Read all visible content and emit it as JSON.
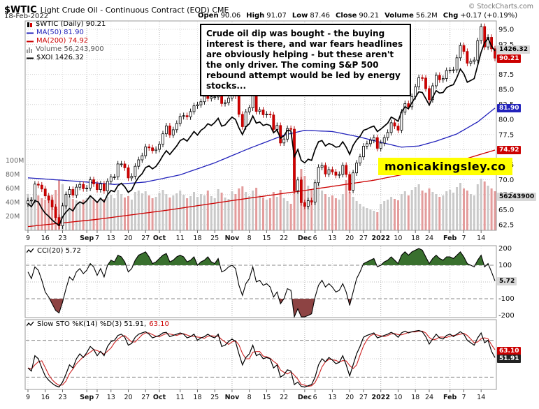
{
  "header": {
    "symbol": "$WTIC",
    "title": "Light Crude Oil - Continuous Contract (EOD) CME",
    "copyright": "© StockCharts.com",
    "date": "18-Feb-2022",
    "open_label": "Open",
    "open_value": "90.06",
    "high_label": "High",
    "high_value": "91.07",
    "low_label": "Low",
    "low_value": "87.46",
    "close_label": "Close",
    "close_value": "90.21",
    "volume_label": "Volume",
    "volume_value": "56.2M",
    "chg_label": "Chg",
    "chg_value": "+0.17 (+0.19%)"
  },
  "legend": {
    "main": "$WTIC (Daily) 90.21",
    "ma50": "MA(50) 81.90",
    "ma200": "MA(200) 74.92",
    "volume": "Volume 56,243,900",
    "overlay": "$XOI 1426.32"
  },
  "annotation": {
    "text": "Crude oil dip was bought - the buying interest is there, and war fears headlines are obviously helping - but these aren't the only driver. The coming S&P 500 rebound attempt would be led by energy stocks..."
  },
  "brand": {
    "text": "monicakingsley.co"
  },
  "panels": {
    "cci_label": "CCI(20) 5.72",
    "sto_label": "Slow STO %K(14) %D(3) 51.91, ",
    "sto_label_red": "63.10"
  },
  "axis_boxes": {
    "xoi": "1426.32",
    "close": "90.21",
    "ma50": "81.90",
    "ma200": "74.92",
    "volume": "56243900",
    "cci": "5.72",
    "sto_d": "63.10",
    "sto_k": "51.91"
  },
  "colors": {
    "candle_down": "#d40000",
    "ma50": "#2222bb",
    "ma200": "#cc0000",
    "overlay_line": "#000000",
    "cci_overbought_fill": "#39702e",
    "cci_oversold_fill": "#8d4343",
    "brand_bg": "#ffff00"
  },
  "chart_data": [
    {
      "type": "candlestick",
      "title": "$WTIC Light Crude Oil - Continuous Contract (EOD) Daily",
      "date_range": "09-Aug-2021 to 18-Feb-2022",
      "ylim": [
        62.5,
        95.0
      ],
      "y_grid_step": 2.5,
      "first_open": 66.0,
      "approx_wick": 0.5,
      "open_rule": "previous_close",
      "closes": [
        66.48,
        66.59,
        69.25,
        69.09,
        68.44,
        67.29,
        66.59,
        65.46,
        63.69,
        62.32,
        65.64,
        67.54,
        68.36,
        67.42,
        68.74,
        69.21,
        68.5,
        68.59,
        69.99,
        69.29,
        68.35,
        69.3,
        68.14,
        69.72,
        70.45,
        70.46,
        72.61,
        72.61,
        71.97,
        70.29,
        70.56,
        72.23,
        73.3,
        73.98,
        75.45,
        75.29,
        74.83,
        75.03,
        75.88,
        77.62,
        78.93,
        77.43,
        78.3,
        79.35,
        80.52,
        80.64,
        80.44,
        81.31,
        82.28,
        82.44,
        82.96,
        83.87,
        83.5,
        83.76,
        83.76,
        84.65,
        82.66,
        82.81,
        83.57,
        84.05,
        83.91,
        80.86,
        78.81,
        81.27,
        81.93,
        84.15,
        81.34,
        81.59,
        80.79,
        80.88,
        80.76,
        78.36,
        79.01,
        76.1,
        76.75,
        78.5,
        78.39,
        68.15,
        69.95,
        66.18,
        65.57,
        66.5,
        66.26,
        69.49,
        72.05,
        72.36,
        70.94,
        71.67,
        71.29,
        70.73,
        70.87,
        72.38,
        70.86,
        68.23,
        71.12,
        72.76,
        73.79,
        75.57,
        75.98,
        76.56,
        76.99,
        75.21,
        76.08,
        76.99,
        77.85,
        79.46,
        78.9,
        78.23,
        81.22,
        82.64,
        82.12,
        83.82,
        85.43,
        86.96,
        86.9,
        85.14,
        83.31,
        85.6,
        87.35,
        86.61,
        86.82,
        88.15,
        88.2,
        88.26,
        90.27,
        92.31,
        91.32,
        89.36,
        89.66,
        89.88,
        93.1,
        95.46,
        92.07,
        93.66,
        91.76,
        90.21
      ],
      "volumes_millions": [
        52,
        48,
        55,
        50,
        46,
        44,
        47,
        51,
        58,
        72,
        66,
        54,
        49,
        45,
        43,
        41,
        44,
        46,
        50,
        44,
        42,
        47,
        45,
        48,
        51,
        46,
        58,
        52,
        47,
        49,
        44,
        55,
        57,
        53,
        56,
        50,
        46,
        48,
        54,
        58,
        52,
        47,
        50,
        53,
        57,
        51,
        46,
        49,
        55,
        48,
        52,
        50,
        57,
        49,
        46,
        59,
        54,
        47,
        45,
        56,
        52,
        60,
        63,
        55,
        49,
        57,
        61,
        50,
        47,
        44,
        46,
        55,
        48,
        58,
        46,
        42,
        38,
        96,
        72,
        88,
        78,
        64,
        58,
        62,
        66,
        57,
        52,
        48,
        50,
        46,
        44,
        52,
        72,
        55,
        48,
        42,
        38,
        34,
        32,
        30,
        28,
        26,
        38,
        42,
        44,
        48,
        45,
        43,
        52,
        56,
        50,
        58,
        62,
        66,
        57,
        54,
        60,
        55,
        52,
        48,
        50,
        56,
        58,
        54,
        62,
        68,
        60,
        57,
        52,
        50,
        66,
        74,
        70,
        64,
        60,
        56
      ],
      "volume_axis_labels": [
        {
          "v": 100,
          "t": "100M"
        },
        {
          "v": 80,
          "t": "80M"
        },
        {
          "v": 60,
          "t": "60M"
        },
        {
          "v": 40,
          "t": "40M"
        },
        {
          "v": 20,
          "t": "20M"
        }
      ],
      "price_axis_labels": [
        {
          "v": 95.0,
          "t": "95.0"
        },
        {
          "v": 92.5,
          "t": "92.5"
        },
        {
          "v": 87.5,
          "t": "87.5"
        },
        {
          "v": 85.0,
          "t": "85.0"
        },
        {
          "v": 82.5,
          "t": "82.5"
        },
        {
          "v": 80.0,
          "t": "80.0"
        },
        {
          "v": 77.5,
          "t": "77.5"
        },
        {
          "v": 72.5,
          "t": "72.5"
        },
        {
          "v": 70.0,
          "t": "70.0"
        },
        {
          "v": 67.5,
          "t": "67.5"
        },
        {
          "v": 65.0,
          "t": "65.0"
        },
        {
          "v": 62.5,
          "t": "62.5"
        }
      ],
      "series": [
        {
          "name": "MA(50)",
          "last": 81.9,
          "color": "#2222bb",
          "keypoints": [
            [
              0,
              70.3
            ],
            [
              10,
              69.9
            ],
            [
              17,
              69.6
            ],
            [
              25,
              69.2
            ],
            [
              34,
              69.6
            ],
            [
              44,
              70.8
            ],
            [
              54,
              72.8
            ],
            [
              64,
              75.2
            ],
            [
              74,
              77.4
            ],
            [
              80,
              78.2
            ],
            [
              88,
              78.0
            ],
            [
              95,
              77.2
            ],
            [
              102,
              76.2
            ],
            [
              108,
              75.4
            ],
            [
              113,
              75.6
            ],
            [
              118,
              76.4
            ],
            [
              124,
              77.6
            ],
            [
              130,
              79.6
            ],
            [
              135,
              81.9
            ]
          ]
        },
        {
          "name": "MA(200)",
          "last": 74.92,
          "color": "#cc0000",
          "keypoints": [
            [
              0,
              62.2
            ],
            [
              20,
              63.4
            ],
            [
              40,
              64.9
            ],
            [
              60,
              66.6
            ],
            [
              80,
              68.2
            ],
            [
              100,
              69.9
            ],
            [
              115,
              71.6
            ],
            [
              125,
              73.2
            ],
            [
              135,
              74.92
            ]
          ]
        },
        {
          "name": "$XOI (rescaled to price axis)",
          "last": 1426.32,
          "color": "#000000",
          "values": [
            66.0,
            65.5,
            66.5,
            66.3,
            65.2,
            64.4,
            63.9,
            63.3,
            62.8,
            62.4,
            63.8,
            64.6,
            65.2,
            64.8,
            65.8,
            66.3,
            66.0,
            66.5,
            67.3,
            66.8,
            66.2,
            66.9,
            66.3,
            67.5,
            68.2,
            68.0,
            69.0,
            69.4,
            68.8,
            67.9,
            68.3,
            69.5,
            70.4,
            71.0,
            72.0,
            72.3,
            71.8,
            72.2,
            73.0,
            74.0,
            74.8,
            74.2,
            74.9,
            75.6,
            76.5,
            76.8,
            76.4,
            77.2,
            78.0,
            77.4,
            78.2,
            78.6,
            79.3,
            79.0,
            79.5,
            80.2,
            78.9,
            79.1,
            79.8,
            80.4,
            80.0,
            78.6,
            77.5,
            78.8,
            79.3,
            80.6,
            79.4,
            79.6,
            79.0,
            79.2,
            79.0,
            77.8,
            78.3,
            76.9,
            77.3,
            78.2,
            78.1,
            73.8,
            75.0,
            73.2,
            72.8,
            73.4,
            73.2,
            75.0,
            76.3,
            76.5,
            75.6,
            76.0,
            75.8,
            75.4,
            75.5,
            76.3,
            75.4,
            74.2,
            75.7,
            76.6,
            77.2,
            78.2,
            78.4,
            78.7,
            78.9,
            78.0,
            78.4,
            78.9,
            79.4,
            80.4,
            80.1,
            79.7,
            81.3,
            82.1,
            81.8,
            82.8,
            83.7,
            84.6,
            84.5,
            83.5,
            82.4,
            83.7,
            84.8,
            84.4,
            84.5,
            85.3,
            85.6,
            85.8,
            87.0,
            88.4,
            87.6,
            86.2,
            86.5,
            86.8,
            89.0,
            91.2,
            92.8,
            93.5,
            92.2,
            91.4
          ]
        }
      ],
      "x_ticks": [
        {
          "label": "9",
          "i": 0
        },
        {
          "label": "16",
          "i": 5
        },
        {
          "label": "23",
          "i": 10
        },
        {
          "label": "Sep",
          "i": 17,
          "month": true
        },
        {
          "label": "7",
          "i": 20
        },
        {
          "label": "13",
          "i": 24
        },
        {
          "label": "20",
          "i": 29
        },
        {
          "label": "27",
          "i": 34
        },
        {
          "label": "Oct",
          "i": 38,
          "month": true
        },
        {
          "label": "11",
          "i": 44
        },
        {
          "label": "18",
          "i": 49
        },
        {
          "label": "25",
          "i": 54
        },
        {
          "label": "Nov",
          "i": 59,
          "month": true
        },
        {
          "label": "8",
          "i": 64
        },
        {
          "label": "15",
          "i": 69
        },
        {
          "label": "22",
          "i": 74
        },
        {
          "label": "Dec",
          "i": 80,
          "month": true
        },
        {
          "label": "6",
          "i": 83
        },
        {
          "label": "13",
          "i": 88
        },
        {
          "label": "20",
          "i": 93
        },
        {
          "label": "27",
          "i": 97
        },
        {
          "label": "2022",
          "i": 102,
          "month": true
        },
        {
          "label": "10",
          "i": 107
        },
        {
          "label": "18",
          "i": 112
        },
        {
          "label": "24",
          "i": 116
        },
        {
          "label": "Feb",
          "i": 122,
          "month": true
        },
        {
          "label": "7",
          "i": 126
        },
        {
          "label": "14",
          "i": 131
        }
      ]
    },
    {
      "type": "line",
      "name": "CCI(20)",
      "last": 5.72,
      "ylim": [
        -200,
        200
      ],
      "thresholds": [
        100,
        -100
      ],
      "axis_labels": [
        {
          "v": 200,
          "t": "200"
        },
        {
          "v": 100,
          "t": "100"
        },
        {
          "v": 0,
          "t": "0"
        },
        {
          "v": -100,
          "t": "-100"
        },
        {
          "v": -200,
          "t": "-200"
        }
      ],
      "values": [
        60,
        20,
        90,
        70,
        10,
        -60,
        -90,
        -130,
        -170,
        -185,
        -120,
        -40,
        30,
        10,
        60,
        80,
        50,
        70,
        110,
        90,
        40,
        80,
        30,
        100,
        130,
        120,
        160,
        150,
        120,
        60,
        80,
        130,
        160,
        170,
        180,
        150,
        110,
        120,
        140,
        160,
        170,
        120,
        130,
        150,
        160,
        150,
        120,
        130,
        150,
        100,
        120,
        130,
        150,
        120,
        110,
        140,
        60,
        70,
        90,
        100,
        80,
        -20,
        -80,
        -10,
        20,
        90,
        0,
        10,
        -20,
        -10,
        -30,
        -90,
        -60,
        -130,
        -100,
        -40,
        -50,
        -230,
        -160,
        -240,
        -250,
        -200,
        -190,
        -90,
        -20,
        10,
        -30,
        -10,
        -30,
        -60,
        -50,
        -10,
        -60,
        -140,
        -60,
        20,
        60,
        110,
        120,
        130,
        140,
        90,
        100,
        120,
        130,
        150,
        130,
        110,
        160,
        180,
        160,
        180,
        190,
        200,
        190,
        150,
        110,
        140,
        160,
        140,
        130,
        150,
        150,
        140,
        160,
        180,
        150,
        110,
        100,
        90,
        130,
        160,
        90,
        110,
        60,
        5.72
      ]
    },
    {
      "type": "line",
      "name": "Slow STO %K(14) %D(3)",
      "k_last": 51.91,
      "d_last": 63.1,
      "ylim": [
        0,
        100
      ],
      "thresholds": [
        80,
        50,
        20
      ],
      "d_rule": "3-period SMA of %K",
      "k_values": [
        35,
        30,
        55,
        50,
        35,
        22,
        15,
        10,
        6,
        4,
        12,
        25,
        40,
        35,
        50,
        58,
        52,
        60,
        70,
        65,
        55,
        62,
        55,
        70,
        78,
        80,
        88,
        90,
        85,
        72,
        75,
        85,
        90,
        92,
        94,
        90,
        84,
        86,
        88,
        92,
        93,
        86,
        88,
        90,
        92,
        90,
        84,
        86,
        90,
        80,
        84,
        86,
        90,
        86,
        84,
        90,
        70,
        72,
        78,
        82,
        78,
        58,
        40,
        52,
        58,
        72,
        55,
        58,
        50,
        52,
        50,
        35,
        40,
        20,
        24,
        32,
        30,
        8,
        12,
        5,
        4,
        6,
        8,
        20,
        40,
        50,
        45,
        52,
        48,
        42,
        44,
        55,
        40,
        22,
        40,
        58,
        70,
        85,
        88,
        90,
        92,
        84,
        86,
        88,
        90,
        93,
        90,
        85,
        92,
        95,
        92,
        94,
        95,
        96,
        94,
        86,
        74,
        82,
        90,
        84,
        82,
        88,
        90,
        86,
        90,
        94,
        90,
        80,
        76,
        72,
        84,
        92,
        76,
        80,
        62,
        51.91
      ]
    }
  ]
}
